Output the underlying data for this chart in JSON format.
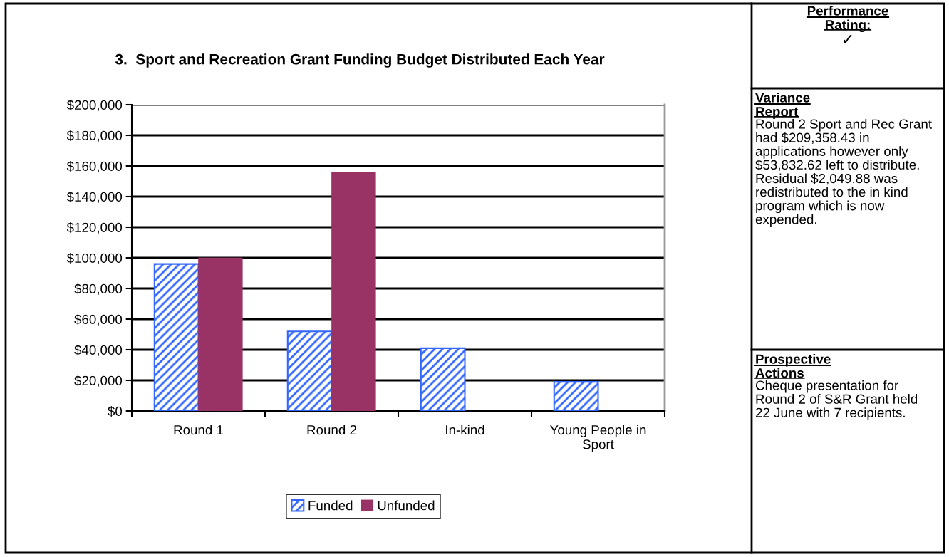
{
  "chart_data": [
    {
      "type": "bar",
      "title": "3.  Sport and Recreation Grant Funding Budget Distributed Each Year",
      "categories": [
        "Round 1",
        "Round 2",
        "In-kind",
        "Young People in Sport"
      ],
      "series": [
        {
          "name": "Funded",
          "color": "#3366ff",
          "values": [
            96000,
            52000,
            41000,
            19000
          ]
        },
        {
          "name": "Unfunded",
          "color": "#993366",
          "values": [
            100000,
            156000,
            null,
            null
          ]
        }
      ],
      "ylim": [
        0,
        200000
      ],
      "yticks": [
        {
          "value": 0,
          "label": "$0"
        },
        {
          "value": 20000,
          "label": "$20,000"
        },
        {
          "value": 40000,
          "label": "$40,000"
        },
        {
          "value": 60000,
          "label": "$60,000"
        },
        {
          "value": 80000,
          "label": "$80,000"
        },
        {
          "value": 100000,
          "label": "$100,000"
        },
        {
          "value": 120000,
          "label": "$120,000"
        },
        {
          "value": 140000,
          "label": "$140,000"
        },
        {
          "value": 160000,
          "label": "$160,000"
        },
        {
          "value": 180000,
          "label": "$180,000"
        },
        {
          "value": 200000,
          "label": "$200,000"
        }
      ],
      "grid": "y",
      "legend": "bottom"
    },
    {
      "type": "other",
      "annotations": [
        "Performance Rating:",
        "✓",
        "Variance Report",
        "Round 2 Sport and Rec Grant had $209,358.43 in applications however only $53,832.62 left to distribute. Residual $2,049.88 was redistributed to the in kind program which is now expended.",
        "Prospective Actions",
        "Cheque presentation for Round 2 of S&R Grant held 22 June with 7 recipients."
      ]
    }
  ]
}
